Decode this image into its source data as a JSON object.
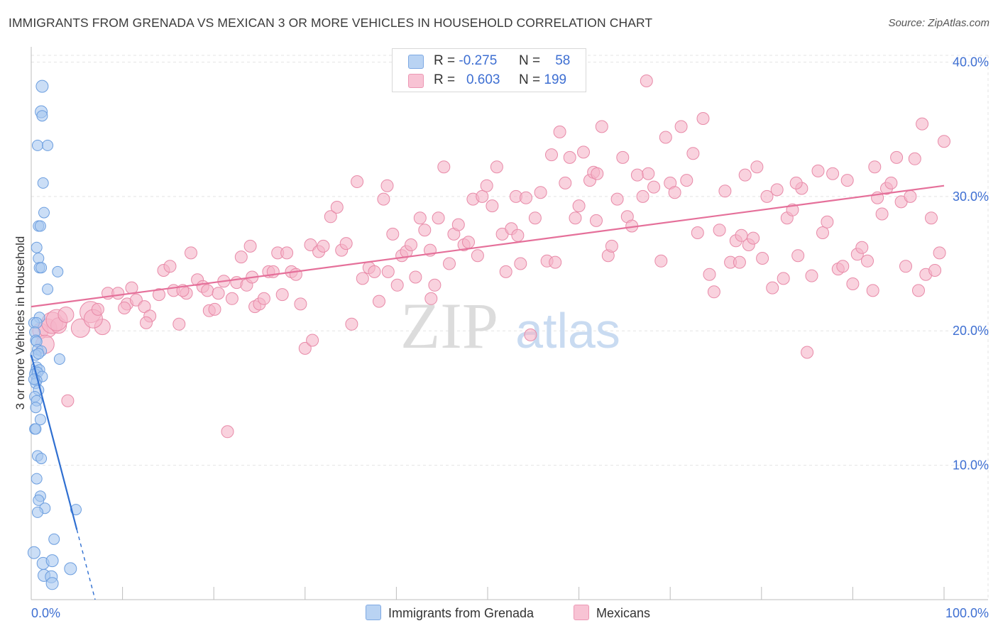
{
  "title": "IMMIGRANTS FROM GRENADA VS MEXICAN 3 OR MORE VEHICLES IN HOUSEHOLD CORRELATION CHART",
  "source": "Source: ZipAtlas.com",
  "watermark": {
    "zip": "ZIP",
    "atlas": "atlas"
  },
  "legend": {
    "series1": {
      "r_label": "R =",
      "r_value": "-0.275",
      "n_label": "N =",
      "n_value": "58",
      "color": "#a9c8f0"
    },
    "series2": {
      "r_label": "R =",
      "r_value": "0.603",
      "n_label": "N =",
      "n_value": "199",
      "color": "#f5b4c8"
    }
  },
  "bottom_legend": {
    "series1": "Immigrants from Grenada",
    "series2": "Mexicans"
  },
  "colors": {
    "blue_fill": "#a9c8f0",
    "blue_stroke": "#6c9edf",
    "blue_line": "#2f6fd1",
    "pink_fill": "#f5b4c8",
    "pink_stroke": "#e88aa8",
    "pink_line": "#e5709a",
    "grid": "#e4e4e4",
    "axis_text": "#3e6fd2"
  },
  "chart_data": {
    "type": "scatter",
    "title": "IMMIGRANTS FROM GRENADA VS MEXICAN 3 OR MORE VEHICLES IN HOUSEHOLD CORRELATION CHART",
    "xlabel": "",
    "ylabel": "3 or more Vehicles in Household",
    "xlim": [
      0,
      100
    ],
    "ylim": [
      0,
      40.5
    ],
    "x_tick_labels": [
      "0.0%",
      "100.0%"
    ],
    "y_ticks": [
      10,
      20,
      30,
      40
    ],
    "y_tick_labels": [
      "10.0%",
      "20.0%",
      "30.0%",
      "40.0%"
    ],
    "grid": true,
    "legend_position": "top-center",
    "series": [
      {
        "name": "Immigrants from Grenada",
        "R": -0.275,
        "N": 58,
        "trendline": {
          "x": [
            0.0,
            5.0
          ],
          "y": [
            18.2,
            5.2
          ],
          "dashed_extension": {
            "x": [
              5.0,
              7.0
            ],
            "y": [
              5.2,
              0.0
            ]
          }
        },
        "points": [
          [
            1.2,
            38.2
          ],
          [
            1.1,
            36.3
          ],
          [
            1.2,
            36.0
          ],
          [
            0.7,
            33.8
          ],
          [
            1.8,
            33.8
          ],
          [
            1.3,
            31.0
          ],
          [
            1.4,
            28.8
          ],
          [
            0.8,
            27.8
          ],
          [
            1.0,
            27.8
          ],
          [
            0.6,
            26.2
          ],
          [
            0.8,
            25.4
          ],
          [
            0.9,
            24.7
          ],
          [
            1.1,
            24.7
          ],
          [
            2.9,
            24.4
          ],
          [
            1.8,
            23.1
          ],
          [
            0.9,
            21.0
          ],
          [
            0.3,
            20.6
          ],
          [
            0.6,
            20.6
          ],
          [
            0.4,
            19.9
          ],
          [
            0.5,
            19.3
          ],
          [
            0.6,
            19.2
          ],
          [
            0.7,
            18.6
          ],
          [
            1.1,
            18.5
          ],
          [
            0.5,
            18.2
          ],
          [
            0.8,
            18.3
          ],
          [
            3.1,
            17.9
          ],
          [
            0.6,
            17.3
          ],
          [
            0.5,
            17.0
          ],
          [
            0.9,
            17.1
          ],
          [
            0.4,
            16.8
          ],
          [
            0.7,
            16.9
          ],
          [
            1.2,
            16.6
          ],
          [
            0.6,
            16.3
          ],
          [
            0.5,
            16.1
          ],
          [
            0.3,
            16.4
          ],
          [
            0.8,
            15.6
          ],
          [
            0.4,
            15.1
          ],
          [
            0.6,
            14.8
          ],
          [
            0.5,
            14.3
          ],
          [
            1.0,
            13.4
          ],
          [
            0.4,
            12.7
          ],
          [
            0.5,
            12.7
          ],
          [
            0.7,
            10.7
          ],
          [
            1.1,
            10.5
          ],
          [
            0.6,
            9.0
          ],
          [
            1.0,
            7.7
          ],
          [
            0.8,
            7.4
          ],
          [
            1.5,
            6.8
          ],
          [
            0.7,
            6.5
          ],
          [
            4.9,
            6.7
          ],
          [
            2.5,
            4.5
          ],
          [
            0.3,
            3.5
          ],
          [
            1.3,
            2.7
          ],
          [
            2.3,
            2.9
          ],
          [
            4.3,
            2.3
          ],
          [
            1.4,
            1.8
          ],
          [
            2.2,
            1.7
          ],
          [
            2.3,
            1.2
          ]
        ]
      },
      {
        "name": "Mexicans",
        "R": 0.603,
        "N": 199,
        "trendline": {
          "x": [
            0.0,
            100.0
          ],
          "y": [
            21.8,
            30.8
          ]
        },
        "points": [
          [
            1.0,
            20.0
          ],
          [
            1.8,
            20.2
          ],
          [
            2.3,
            20.6
          ],
          [
            3.0,
            20.4
          ],
          [
            1.5,
            19.0
          ],
          [
            2.8,
            20.8
          ],
          [
            3.8,
            21.2
          ],
          [
            5.4,
            20.2
          ],
          [
            6.5,
            21.4
          ],
          [
            7.8,
            20.3
          ],
          [
            6.8,
            20.9
          ],
          [
            4.0,
            14.8
          ],
          [
            8.4,
            22.8
          ],
          [
            9.5,
            22.8
          ],
          [
            10.5,
            22.0
          ],
          [
            10.2,
            21.7
          ],
          [
            11.0,
            23.2
          ],
          [
            11.5,
            22.3
          ],
          [
            12.4,
            21.8
          ],
          [
            13.0,
            21.1
          ],
          [
            12.6,
            20.6
          ],
          [
            14.0,
            22.7
          ],
          [
            14.5,
            24.5
          ],
          [
            15.2,
            24.8
          ],
          [
            15.6,
            23.0
          ],
          [
            16.2,
            20.5
          ],
          [
            17.0,
            22.8
          ],
          [
            17.5,
            25.8
          ],
          [
            18.2,
            23.8
          ],
          [
            18.8,
            23.3
          ],
          [
            19.3,
            23.0
          ],
          [
            19.5,
            21.5
          ],
          [
            20.1,
            21.6
          ],
          [
            20.5,
            22.8
          ],
          [
            21.1,
            23.7
          ],
          [
            21.5,
            12.5
          ],
          [
            22.0,
            22.4
          ],
          [
            22.5,
            23.6
          ],
          [
            23.0,
            25.5
          ],
          [
            23.6,
            23.4
          ],
          [
            24.0,
            26.3
          ],
          [
            24.5,
            21.8
          ],
          [
            25.0,
            22.0
          ],
          [
            25.5,
            22.4
          ],
          [
            26.0,
            24.4
          ],
          [
            26.5,
            24.4
          ],
          [
            27.0,
            25.8
          ],
          [
            27.5,
            22.7
          ],
          [
            28.0,
            25.8
          ],
          [
            28.5,
            24.4
          ],
          [
            29.0,
            24.2
          ],
          [
            29.5,
            22.0
          ],
          [
            30.0,
            18.7
          ],
          [
            30.6,
            26.4
          ],
          [
            30.8,
            19.3
          ],
          [
            31.5,
            25.9
          ],
          [
            32.0,
            26.3
          ],
          [
            32.8,
            28.5
          ],
          [
            33.5,
            29.2
          ],
          [
            34.0,
            26.0
          ],
          [
            34.5,
            26.5
          ],
          [
            35.1,
            20.5
          ],
          [
            35.7,
            31.1
          ],
          [
            36.3,
            23.9
          ],
          [
            37.0,
            24.7
          ],
          [
            37.6,
            24.4
          ],
          [
            38.1,
            22.2
          ],
          [
            38.6,
            29.8
          ],
          [
            39.1,
            24.4
          ],
          [
            39.6,
            27.2
          ],
          [
            40.1,
            23.4
          ],
          [
            40.6,
            25.6
          ],
          [
            41.1,
            25.9
          ],
          [
            41.6,
            26.4
          ],
          [
            42.1,
            24.0
          ],
          [
            42.6,
            28.4
          ],
          [
            43.1,
            27.5
          ],
          [
            43.7,
            26.0
          ],
          [
            44.2,
            23.4
          ],
          [
            44.6,
            28.4
          ],
          [
            45.2,
            32.2
          ],
          [
            45.8,
            25.0
          ],
          [
            46.3,
            27.2
          ],
          [
            46.8,
            27.9
          ],
          [
            47.4,
            26.4
          ],
          [
            47.9,
            26.6
          ],
          [
            48.4,
            29.8
          ],
          [
            48.9,
            25.6
          ],
          [
            49.4,
            30.0
          ],
          [
            49.9,
            30.8
          ],
          [
            50.5,
            29.3
          ],
          [
            51.0,
            32.2
          ],
          [
            51.6,
            27.2
          ],
          [
            52.0,
            24.4
          ],
          [
            52.6,
            27.6
          ],
          [
            53.1,
            30.0
          ],
          [
            53.6,
            25.0
          ],
          [
            54.2,
            29.9
          ],
          [
            54.7,
            19.7
          ],
          [
            55.2,
            28.4
          ],
          [
            55.8,
            30.3
          ],
          [
            56.5,
            25.2
          ],
          [
            57.0,
            33.1
          ],
          [
            57.4,
            25.1
          ],
          [
            57.9,
            34.8
          ],
          [
            58.5,
            31.0
          ],
          [
            59.0,
            32.9
          ],
          [
            59.6,
            28.4
          ],
          [
            60.0,
            29.3
          ],
          [
            60.5,
            33.3
          ],
          [
            61.2,
            31.2
          ],
          [
            61.6,
            31.8
          ],
          [
            62.0,
            31.7
          ],
          [
            62.5,
            35.2
          ],
          [
            63.2,
            25.6
          ],
          [
            63.6,
            26.3
          ],
          [
            64.2,
            29.8
          ],
          [
            64.8,
            32.9
          ],
          [
            65.3,
            28.5
          ],
          [
            65.8,
            27.8
          ],
          [
            66.4,
            31.6
          ],
          [
            67.0,
            30.0
          ],
          [
            67.6,
            31.7
          ],
          [
            68.2,
            30.7
          ],
          [
            69.0,
            25.2
          ],
          [
            69.5,
            34.4
          ],
          [
            70.0,
            31.0
          ],
          [
            70.5,
            30.3
          ],
          [
            71.2,
            35.2
          ],
          [
            71.8,
            31.2
          ],
          [
            72.5,
            33.2
          ],
          [
            73.0,
            27.3
          ],
          [
            73.6,
            35.8
          ],
          [
            74.3,
            24.2
          ],
          [
            74.8,
            22.9
          ],
          [
            75.4,
            27.5
          ],
          [
            76.0,
            30.4
          ],
          [
            76.6,
            25.1
          ],
          [
            77.2,
            26.7
          ],
          [
            77.6,
            25.1
          ],
          [
            78.2,
            31.6
          ],
          [
            78.6,
            26.4
          ],
          [
            79.1,
            26.9
          ],
          [
            79.5,
            32.2
          ],
          [
            80.1,
            25.4
          ],
          [
            80.6,
            30.0
          ],
          [
            81.2,
            23.2
          ],
          [
            81.7,
            30.5
          ],
          [
            82.4,
            23.9
          ],
          [
            82.8,
            28.4
          ],
          [
            83.4,
            29.0
          ],
          [
            84.0,
            25.6
          ],
          [
            84.4,
            30.6
          ],
          [
            85.0,
            18.4
          ],
          [
            85.5,
            24.1
          ],
          [
            86.2,
            31.9
          ],
          [
            86.7,
            27.3
          ],
          [
            87.2,
            28.1
          ],
          [
            87.8,
            31.7
          ],
          [
            88.4,
            24.6
          ],
          [
            88.9,
            24.8
          ],
          [
            89.4,
            31.2
          ],
          [
            90.0,
            23.5
          ],
          [
            90.5,
            25.7
          ],
          [
            91.0,
            26.2
          ],
          [
            91.6,
            25.2
          ],
          [
            92.2,
            23.0
          ],
          [
            92.7,
            29.9
          ],
          [
            93.2,
            28.7
          ],
          [
            93.7,
            30.6
          ],
          [
            94.2,
            31.0
          ],
          [
            94.8,
            32.9
          ],
          [
            95.3,
            29.6
          ],
          [
            95.8,
            24.8
          ],
          [
            96.3,
            30.0
          ],
          [
            96.8,
            32.8
          ],
          [
            97.2,
            23.0
          ],
          [
            97.6,
            35.4
          ],
          [
            98.0,
            24.2
          ],
          [
            98.6,
            28.4
          ],
          [
            99.0,
            24.5
          ],
          [
            99.5,
            25.8
          ],
          [
            100.0,
            34.1
          ],
          [
            67.4,
            38.6
          ],
          [
            39.0,
            30.8
          ],
          [
            7.3,
            21.6
          ],
          [
            16.6,
            23.0
          ],
          [
            24.2,
            24.0
          ],
          [
            43.8,
            22.4
          ],
          [
            53.3,
            27.1
          ],
          [
            61.9,
            28.2
          ],
          [
            77.8,
            27.1
          ],
          [
            83.8,
            31.0
          ],
          [
            92.4,
            32.2
          ]
        ]
      }
    ]
  }
}
